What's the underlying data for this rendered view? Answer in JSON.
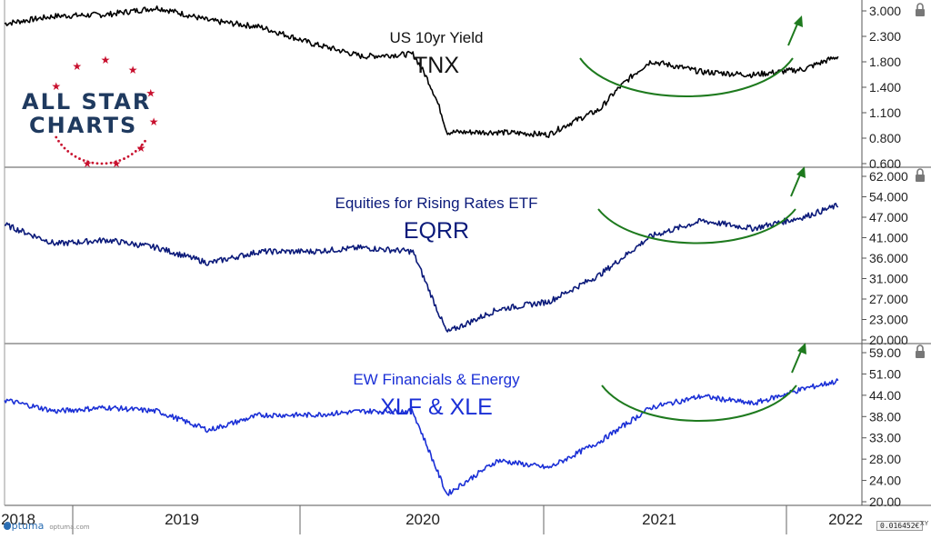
{
  "panels": [
    {
      "title": "US 10yr Yield",
      "ticker": "TNX",
      "color": "#000000",
      "ticks": [
        "3.000",
        "2.300",
        "1.800",
        "1.400",
        "1.100",
        "0.800",
        "0.600"
      ]
    },
    {
      "title": "Equities for Rising Rates ETF",
      "ticker": "EQRR",
      "color": "#0b1a7a",
      "ticks": [
        "62.000",
        "54.000",
        "47.000",
        "41.000",
        "36.000",
        "31.000",
        "27.000",
        "23.000",
        "20.000"
      ]
    },
    {
      "title": "EW Financials & Energy",
      "ticker": "XLF & XLE",
      "color": "#1a2fd6",
      "ticks": [
        "59.00",
        "51.00",
        "44.00",
        "38.00",
        "33.00",
        "28.00",
        "24.00",
        "20.00"
      ]
    }
  ],
  "x_axis": {
    "labels": [
      "2018",
      "2019",
      "2020",
      "2021",
      "2022"
    ]
  },
  "logo": {
    "line1": "ALL STAR",
    "line2": "CHARTS",
    "accent": "#c8102e",
    "text_color": "#1f3a5f"
  },
  "footer": {
    "brand": "Optuma",
    "site": "optuma.com",
    "scale_value": "0.016452€",
    "xy_label": "XY"
  },
  "annotation_color": "#1e7a1e",
  "chart_data": [
    {
      "type": "line",
      "title": "US 10yr Yield",
      "series": [
        {
          "name": "TNX",
          "x": [
            "2018-01",
            "2018-04",
            "2018-07",
            "2018-10",
            "2019-01",
            "2019-04",
            "2019-07",
            "2019-10",
            "2020-01",
            "2020-03",
            "2020-06",
            "2020-09",
            "2020-12",
            "2021-03",
            "2021-06",
            "2021-09",
            "2021-12",
            "2022-02"
          ],
          "values": [
            2.6,
            2.85,
            2.9,
            3.15,
            2.7,
            2.5,
            2.05,
            1.75,
            1.8,
            0.7,
            0.7,
            0.68,
            0.92,
            1.65,
            1.45,
            1.4,
            1.5,
            1.75
          ]
        }
      ],
      "ylim": [
        0.5,
        3.1
      ],
      "scale": "log"
    },
    {
      "type": "line",
      "title": "Equities for Rising Rates ETF",
      "series": [
        {
          "name": "EQRR",
          "x": [
            "2018-01",
            "2018-04",
            "2018-07",
            "2018-10",
            "2019-01",
            "2019-04",
            "2019-07",
            "2019-10",
            "2020-01",
            "2020-03",
            "2020-06",
            "2020-09",
            "2020-12",
            "2021-03",
            "2021-06",
            "2021-09",
            "2021-12",
            "2022-02"
          ],
          "values": [
            49,
            44,
            45,
            43,
            39,
            42,
            42,
            43,
            42,
            21,
            27,
            29,
            36,
            46,
            50,
            48,
            51,
            54
          ]
        }
      ],
      "ylim": [
        20,
        62
      ]
    },
    {
      "type": "line",
      "title": "EW Financials & Energy",
      "series": [
        {
          "name": "XLF & XLE",
          "x": [
            "2018-01",
            "2018-04",
            "2018-07",
            "2018-10",
            "2019-01",
            "2019-04",
            "2019-07",
            "2019-10",
            "2020-01",
            "2020-03",
            "2020-06",
            "2020-09",
            "2020-12",
            "2021-03",
            "2021-06",
            "2021-09",
            "2021-12",
            "2022-02"
          ],
          "values": [
            46,
            43,
            44,
            43,
            38,
            42,
            42,
            43,
            43,
            21,
            30,
            28,
            35,
            44,
            47,
            45,
            49,
            51
          ]
        }
      ],
      "ylim": [
        20,
        59
      ]
    }
  ]
}
